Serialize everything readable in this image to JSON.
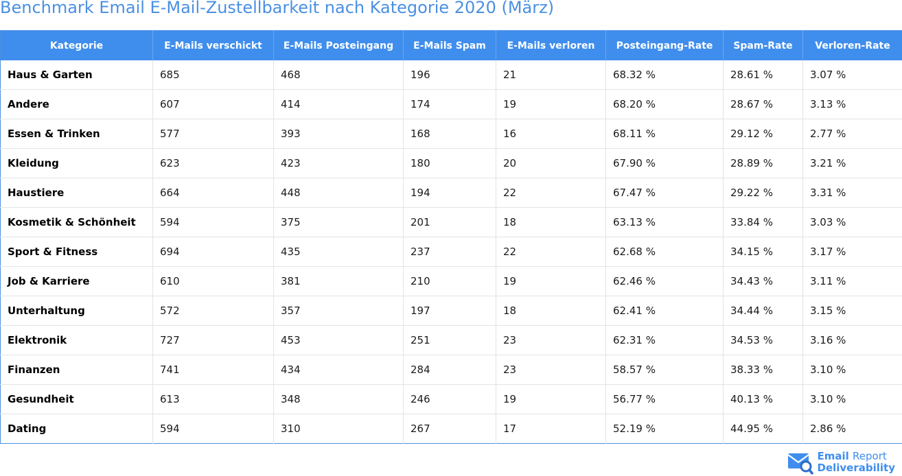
{
  "title": "Benchmark Email E-Mail-Zustellbarkeit nach Kategorie 2020 (März)",
  "table": {
    "headers": [
      "Kategorie",
      "E-Mails verschickt",
      "E-Mails Posteingang",
      "E-Mails Spam",
      "E-Mails verloren",
      "Posteingang-Rate",
      "Spam-Rate",
      "Verloren-Rate"
    ],
    "rows": [
      [
        "Haus & Garten",
        "685",
        "468",
        "196",
        "21",
        "68.32 %",
        "28.61 %",
        "3.07 %"
      ],
      [
        "Andere",
        "607",
        "414",
        "174",
        "19",
        "68.20 %",
        "28.67 %",
        "3.13 %"
      ],
      [
        "Essen & Trinken",
        "577",
        "393",
        "168",
        "16",
        "68.11 %",
        "29.12 %",
        "2.77 %"
      ],
      [
        "Kleidung",
        "623",
        "423",
        "180",
        "20",
        "67.90 %",
        "28.89 %",
        "3.21 %"
      ],
      [
        "Haustiere",
        "664",
        "448",
        "194",
        "22",
        "67.47 %",
        "29.22 %",
        "3.31 %"
      ],
      [
        "Kosmetik & Schönheit",
        "594",
        "375",
        "201",
        "18",
        "63.13 %",
        "33.84 %",
        "3.03 %"
      ],
      [
        "Sport & Fitness",
        "694",
        "435",
        "237",
        "22",
        "62.68 %",
        "34.15 %",
        "3.17 %"
      ],
      [
        "Job & Karriere",
        "610",
        "381",
        "210",
        "19",
        "62.46 %",
        "34.43 %",
        "3.11 %"
      ],
      [
        "Unterhaltung",
        "572",
        "357",
        "197",
        "18",
        "62.41 %",
        "34.44 %",
        "3.15 %"
      ],
      [
        "Elektronik",
        "727",
        "453",
        "251",
        "23",
        "62.31 %",
        "34.53 %",
        "3.16 %"
      ],
      [
        "Finanzen",
        "741",
        "434",
        "284",
        "23",
        "58.57 %",
        "38.33 %",
        "3.10 %"
      ],
      [
        "Gesundheit",
        "613",
        "348",
        "246",
        "19",
        "56.77 %",
        "40.13 %",
        "3.10 %"
      ],
      [
        "Dating",
        "594",
        "310",
        "267",
        "17",
        "52.19 %",
        "44.95 %",
        "2.86 %"
      ]
    ]
  },
  "logo": {
    "line1_bold": "Email",
    "line1_light": "Report",
    "line2": "Deliverability",
    "icon": "envelope-magnifier-icon"
  },
  "colors": {
    "accent": "#3f8eed",
    "title": "#4a90e2"
  }
}
